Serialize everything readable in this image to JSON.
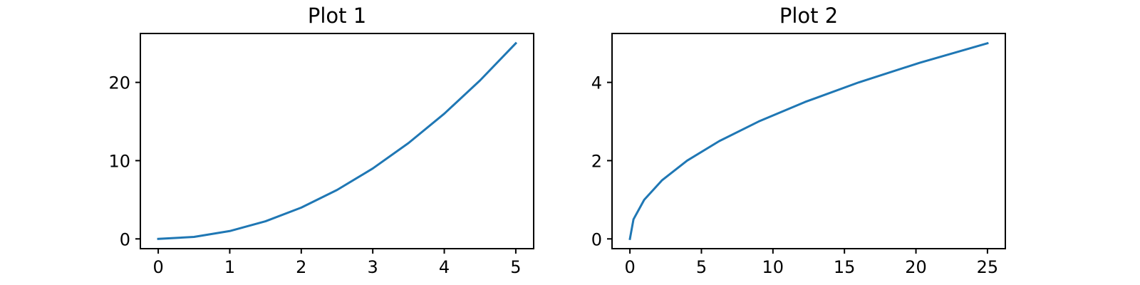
{
  "chart_data": [
    {
      "type": "line",
      "title": "Plot 1",
      "xlabel": "",
      "ylabel": "",
      "xlim": [
        -0.25,
        5.25
      ],
      "ylim": [
        -1.25,
        26.25
      ],
      "xticks": [
        0,
        1,
        2,
        3,
        4,
        5
      ],
      "yticks": [
        0,
        10,
        20
      ],
      "grid": false,
      "series": [
        {
          "color": "#1f77b4",
          "x": [
            0,
            0.5,
            1,
            1.5,
            2,
            2.5,
            3,
            3.5,
            4,
            4.5,
            5
          ],
          "y": [
            0,
            0.25,
            1,
            2.25,
            4,
            6.25,
            9,
            12.25,
            16,
            20.25,
            25
          ]
        }
      ]
    },
    {
      "type": "line",
      "title": "Plot 2",
      "xlabel": "",
      "ylabel": "",
      "xlim": [
        -1.25,
        26.25
      ],
      "ylim": [
        -0.25,
        5.25
      ],
      "xticks": [
        0,
        5,
        10,
        15,
        20,
        25
      ],
      "yticks": [
        0,
        2,
        4
      ],
      "grid": false,
      "series": [
        {
          "color": "#1f77b4",
          "x": [
            0,
            0.25,
            1,
            2.25,
            4,
            6.25,
            9,
            12.25,
            16,
            20.25,
            25
          ],
          "y": [
            0,
            0.5,
            1,
            1.5,
            2,
            2.5,
            3,
            3.5,
            4,
            4.5,
            5
          ]
        }
      ]
    }
  ]
}
